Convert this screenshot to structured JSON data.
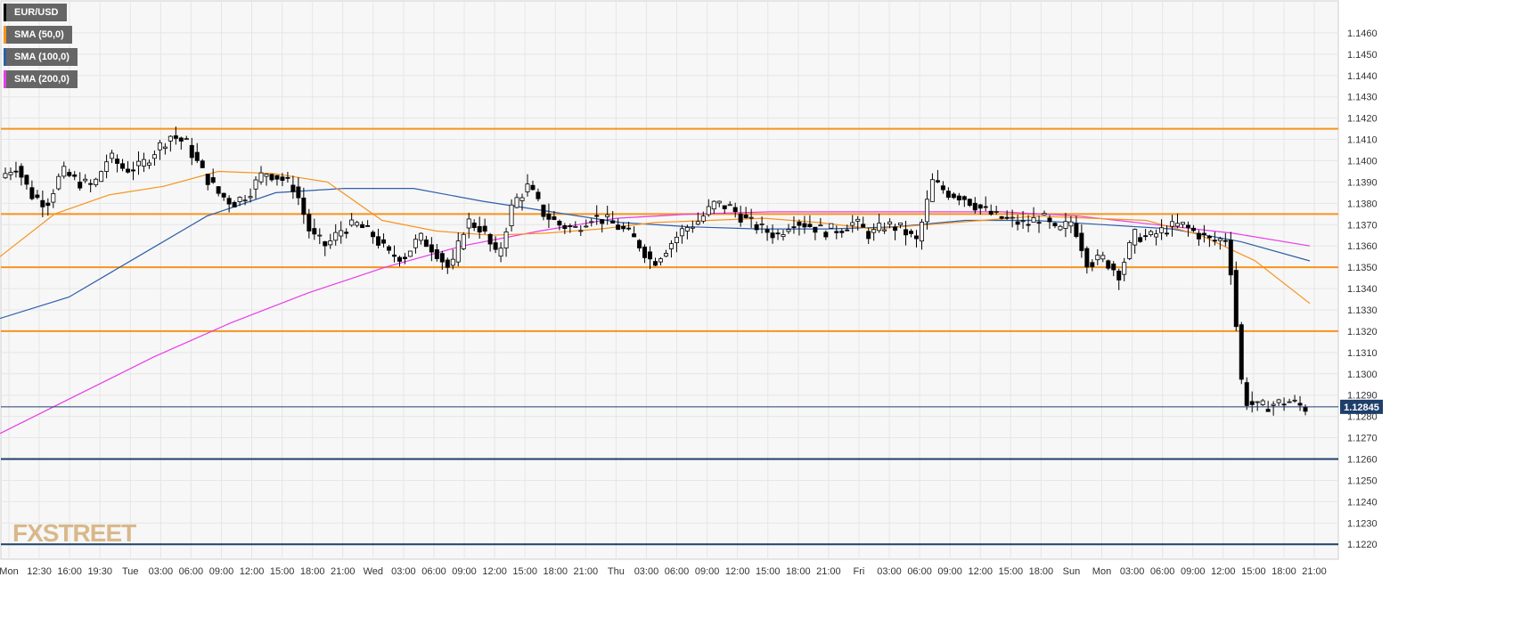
{
  "legend": [
    {
      "label": "EUR/USD",
      "color": "#000000"
    },
    {
      "label": "SMA (50,0)",
      "color": "#f7931e"
    },
    {
      "label": "SMA (100,0)",
      "color": "#2d5fa8"
    },
    {
      "label": "SMA (200,0)",
      "color": "#e83ce8"
    }
  ],
  "brand": "FXSTREET",
  "colors": {
    "background": "#f7f7f7",
    "grid": "#e6e6e6",
    "up_candle": "#ffffff",
    "down_candle": "#000000",
    "orange_level": "#f7931e",
    "blue_level": "#1f3f6b",
    "price_badge": "#1f3f6b"
  },
  "chart_data": {
    "type": "candlestick",
    "symbol": "EUR/USD",
    "ylim": [
      1.1213,
      1.1475
    ],
    "y_ticks": [
      "1.1220",
      "1.1230",
      "1.1240",
      "1.1250",
      "1.1260",
      "1.1270",
      "1.1280",
      "1.1290",
      "1.1300",
      "1.1310",
      "1.1320",
      "1.1330",
      "1.1340",
      "1.1350",
      "1.1360",
      "1.1370",
      "1.1380",
      "1.1390",
      "1.1400",
      "1.1410",
      "1.1420",
      "1.1430",
      "1.1440",
      "1.1450",
      "1.1460"
    ],
    "x_ticks": [
      "Mon",
      "12:30",
      "16:00",
      "19:30",
      "Tue",
      "03:00",
      "06:00",
      "09:00",
      "12:00",
      "15:00",
      "18:00",
      "21:00",
      "Wed",
      "03:00",
      "06:00",
      "09:00",
      "12:00",
      "15:00",
      "18:00",
      "21:00",
      "Thu",
      "03:00",
      "06:00",
      "09:00",
      "12:00",
      "15:00",
      "18:00",
      "21:00",
      "Fri",
      "03:00",
      "06:00",
      "09:00",
      "12:00",
      "15:00",
      "18:00",
      "Sun",
      "Mon",
      "03:00",
      "06:00",
      "09:00",
      "12:00",
      "15:00",
      "18:00",
      "21:00"
    ],
    "last_price": "1.12845",
    "last_price_value": 1.12845,
    "horizontal_levels": [
      {
        "value": 1.1415,
        "color": "orange"
      },
      {
        "value": 1.1375,
        "color": "orange"
      },
      {
        "value": 1.135,
        "color": "orange"
      },
      {
        "value": 1.132,
        "color": "orange"
      },
      {
        "value": 1.126,
        "color": "blue"
      },
      {
        "value": 1.122,
        "color": "blue"
      }
    ],
    "price_path": [
      1.1392,
      1.1398,
      1.1384,
      1.138,
      1.1395,
      1.139,
      1.1388,
      1.1402,
      1.1396,
      1.1397,
      1.1405,
      1.1412,
      1.1408,
      1.1395,
      1.1385,
      1.138,
      1.1385,
      1.1395,
      1.1392,
      1.1387,
      1.1365,
      1.136,
      1.1368,
      1.137,
      1.1365,
      1.1356,
      1.1355,
      1.1364,
      1.1358,
      1.1348,
      1.1372,
      1.1368,
      1.1354,
      1.138,
      1.1388,
      1.1375,
      1.137,
      1.1368,
      1.1374,
      1.1372,
      1.1368,
      1.1362,
      1.1352,
      1.136,
      1.1368,
      1.1372,
      1.138,
      1.1378,
      1.1372,
      1.1368,
      1.1365,
      1.1372,
      1.137,
      1.1367,
      1.1368,
      1.1371,
      1.1365,
      1.137,
      1.1368,
      1.1362,
      1.139,
      1.1385,
      1.1383,
      1.1378,
      1.1374,
      1.1372,
      1.137,
      1.1374,
      1.1366,
      1.1372,
      1.1352,
      1.1354,
      1.1347,
      1.1365,
      1.1364,
      1.1368,
      1.137,
      1.1366,
      1.1362,
      1.1364,
      1.1288,
      1.1284,
      1.1286,
      1.1287,
      1.1284
    ],
    "sma_50": [
      1.1355,
      1.1375,
      1.1384,
      1.1388,
      1.1395,
      1.1394,
      1.139,
      1.1372,
      1.1367,
      1.1365,
      1.1366,
      1.1368,
      1.1371,
      1.1372,
      1.1373,
      1.1371,
      1.1368,
      1.137,
      1.1372,
      1.1374,
      1.1373,
      1.1372,
      1.1365,
      1.1353,
      1.1333
    ],
    "sma_100": [
      1.1326,
      1.1336,
      1.1355,
      1.1374,
      1.1385,
      1.1387,
      1.1387,
      1.1381,
      1.1376,
      1.1371,
      1.1369,
      1.1368,
      1.1368,
      1.1369,
      1.1372,
      1.1372,
      1.137,
      1.1368,
      1.1362,
      1.1353
    ],
    "sma_200": [
      1.1272,
      1.129,
      1.1308,
      1.1324,
      1.1338,
      1.135,
      1.136,
      1.1367,
      1.1373,
      1.1375,
      1.1376,
      1.1376,
      1.1376,
      1.1376,
      1.1374,
      1.137,
      1.1366,
      1.136
    ]
  }
}
